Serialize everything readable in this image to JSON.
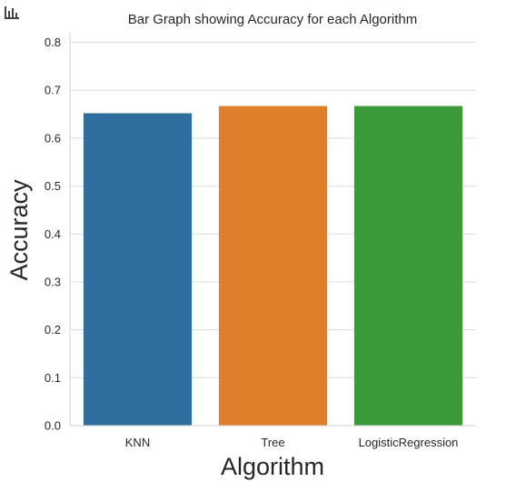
{
  "chart_data": {
    "type": "bar",
    "title": "Bar Graph showing Accuracy for each Algorithm",
    "xlabel": "Algorithm",
    "ylabel": "Accuracy",
    "categories": [
      "KNN",
      "Tree",
      "LogisticRegression"
    ],
    "values": [
      0.652,
      0.667,
      0.667
    ],
    "colors": [
      "#2f6f9f",
      "#e07f2a",
      "#3a9a3a"
    ],
    "ylim": [
      0,
      0.82
    ],
    "yticks": [
      "0.0",
      "0.1",
      "0.2",
      "0.3",
      "0.4",
      "0.5",
      "0.6",
      "0.7",
      "0.8"
    ],
    "grid": "horizontal",
    "legend": "none"
  },
  "toolbar": {
    "icon": "bar-chart-icon"
  }
}
